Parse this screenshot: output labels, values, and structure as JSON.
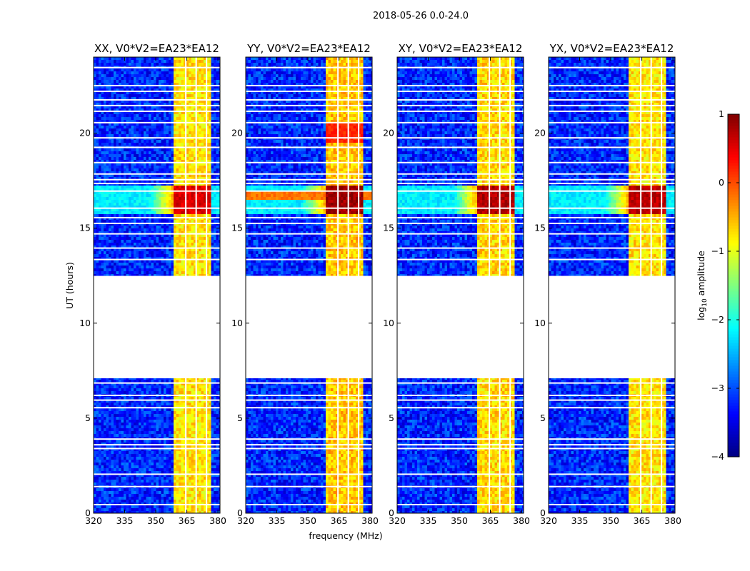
{
  "figure": {
    "title": "2018-05-26 0.0-24.0",
    "xlabel": "frequency (MHz)",
    "ylabel": "UT (hours)",
    "colorbar_label_prefix": "log",
    "colorbar_label_sub": "10",
    "colorbar_label_suffix": " amplitude"
  },
  "chart_data": {
    "type": "heatmap",
    "description_type": "dynamic spectrum waterfall, 4 polarization panels",
    "panels": [
      {
        "title": "XX, V0*V2=EA23*EA12",
        "pol": "XX",
        "flare_level": 0.55,
        "band_level": -0.75
      },
      {
        "title": "YY, V0*V2=EA23*EA12",
        "pol": "YY",
        "flare_level": 0.85,
        "band_level": -0.6
      },
      {
        "title": "XY, V0*V2=EA23*EA12",
        "pol": "XY",
        "flare_level": 0.75,
        "band_level": -0.7
      },
      {
        "title": "YX, V0*V2=EA23*EA12",
        "pol": "YX",
        "flare_level": 0.7,
        "band_level": -0.75
      }
    ],
    "x_range": [
      320,
      381
    ],
    "x_ticks": [
      320,
      335,
      350,
      365,
      380
    ],
    "y_range": [
      0,
      24
    ],
    "y_ticks": [
      0,
      5,
      10,
      15,
      20
    ],
    "color_range": [
      -4,
      1
    ],
    "colorbar_ticks": [
      -4,
      -3,
      -2,
      -1,
      0,
      1
    ],
    "colormap": "jet",
    "background_level": -3.2,
    "no_data_interval_hours": [
      7.1,
      12.4
    ],
    "flare_interval_hours": [
      15.8,
      17.3
    ],
    "rfi_band_mhz": [
      359,
      377
    ],
    "band_gaps_mhz": [
      364.5,
      369.5,
      374.5
    ],
    "gap_lines_hours": [
      0.45,
      1.4,
      2.05,
      3.4,
      3.6,
      3.9,
      5.55,
      5.95,
      6.2,
      6.85,
      12.45,
      13.35,
      13.95,
      14.7,
      15.25,
      15.55,
      16.05,
      16.95,
      17.35,
      17.55,
      17.85,
      18.45,
      19.25,
      19.75,
      20.55,
      21.15,
      21.45,
      21.75,
      22.2,
      22.5,
      23.45
    ]
  }
}
